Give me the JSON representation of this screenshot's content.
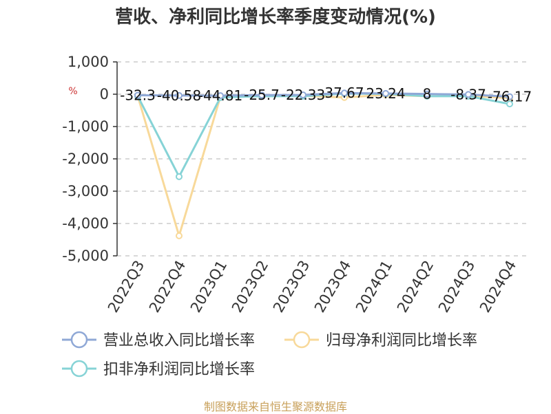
{
  "title": "营收、净利同比增长率季度变动情况(%)",
  "source": "制图数据来自恒生聚源数据库",
  "chart_data": {
    "type": "line",
    "title": "营收、净利同比增长率季度变动情况(%)",
    "ylabel": "%",
    "xlabel": "",
    "ylim": [
      -5000,
      1000
    ],
    "yticks": [
      1000,
      0,
      -1000,
      -2000,
      -3000,
      -4000,
      -5000
    ],
    "ytick_labels": [
      "1,000",
      "0",
      "-1,000",
      "-2,000",
      "-3,000",
      "-4,000",
      "-5,000"
    ],
    "grid": true,
    "legend_position": "bottom",
    "categories": [
      "2022Q3",
      "2022Q4",
      "2023Q1",
      "2023Q2",
      "2023Q3",
      "2023Q4",
      "2024Q1",
      "2024Q2",
      "2024Q3",
      "2024Q4"
    ],
    "series": [
      {
        "name": "营业总收入同比增长率",
        "color": "#8fa8d6",
        "values": [
          -32.3,
          -40.58,
          -44.81,
          -25.7,
          -22.33,
          37.67,
          23.24,
          8,
          -8.37,
          -76.17
        ],
        "labels": [
          "-32.3",
          "-40.58",
          "-44.81",
          "-25.7",
          "-22.33",
          "37.67",
          "23.24",
          "8",
          "-8.37",
          "-76.17"
        ]
      },
      {
        "name": "归母净利润同比增长率",
        "color": "#f8d99a",
        "values": [
          -60,
          -4380,
          -80,
          -50,
          -50,
          -100,
          -20,
          -60,
          -50,
          -120
        ]
      },
      {
        "name": "扣非净利润同比增长率",
        "color": "#86d3d6",
        "values": [
          -60,
          -2550,
          -100,
          -60,
          -60,
          20,
          10,
          -60,
          -60,
          -300
        ]
      }
    ]
  }
}
